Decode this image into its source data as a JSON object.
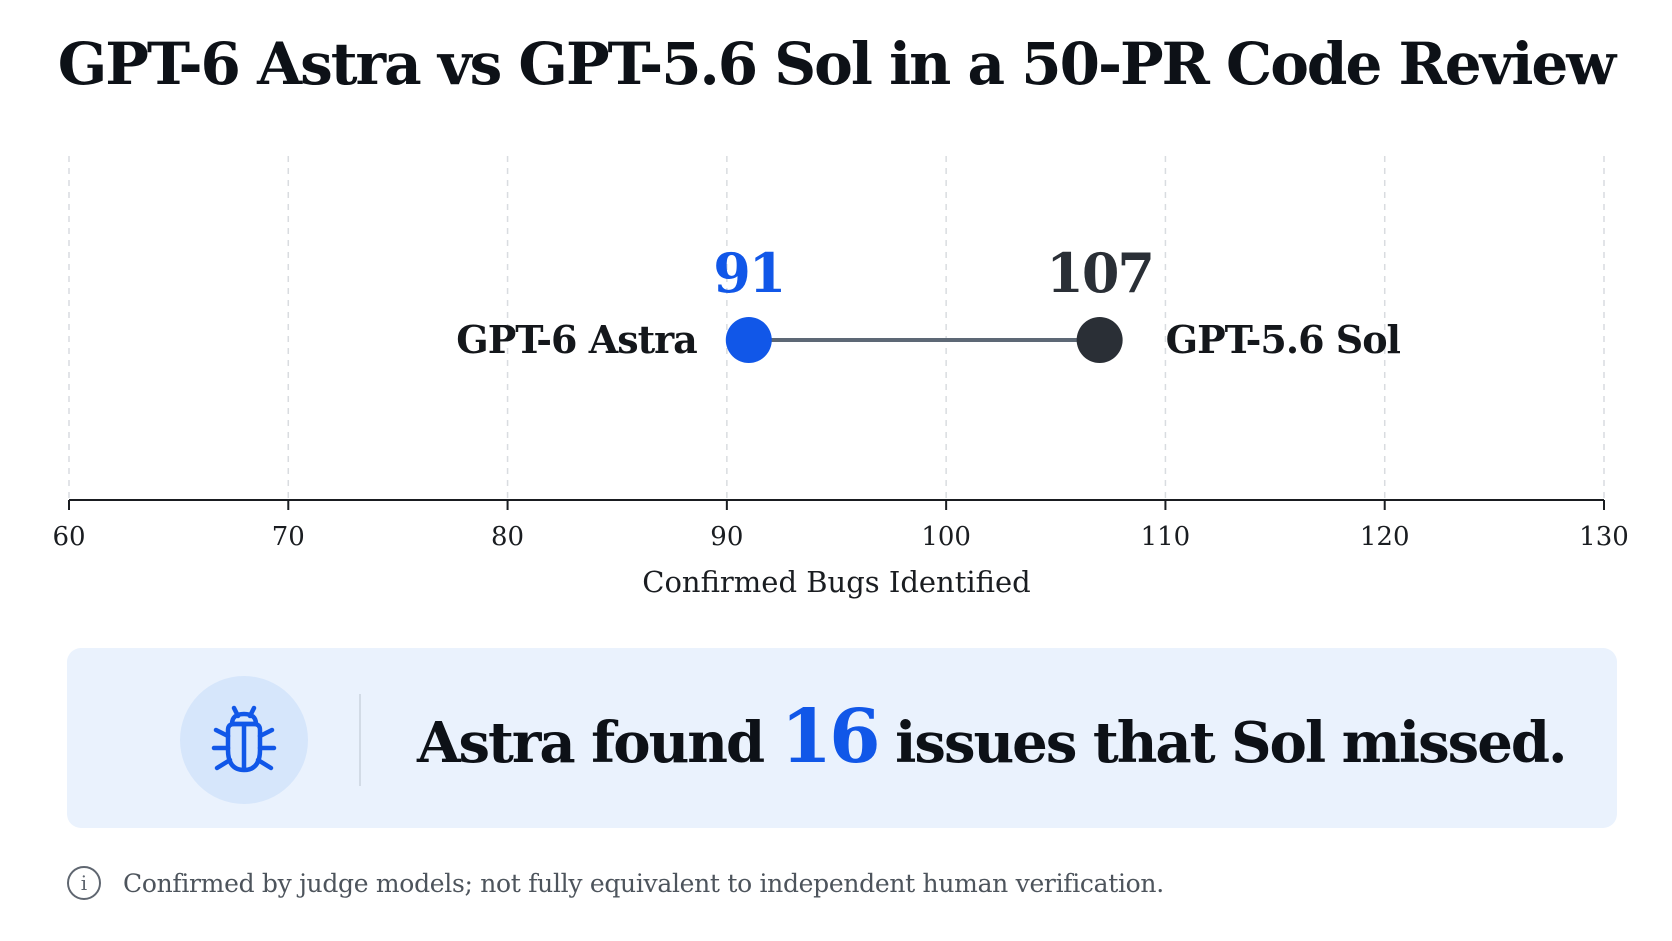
{
  "title": "GPT-6 Astra vs GPT-5.6 Sol in a 50-PR Code Review",
  "chart_data": {
    "type": "scatter",
    "title": "GPT-6 Astra vs GPT-5.6 Sol in a 50-PR Code Review",
    "xlabel": "Confirmed Bugs Identified",
    "xlim": [
      60,
      130
    ],
    "xticks": [
      60,
      70,
      80,
      90,
      100,
      110,
      120,
      130
    ],
    "grid": true,
    "points": [
      {
        "name": "GPT-6 Astra",
        "value": 91,
        "label": "91",
        "color": "#1157e8"
      },
      {
        "name": "GPT-5.6 Sol",
        "value": 107,
        "label": "107",
        "color": "#2a2f36"
      }
    ],
    "connector_color": "#5d6875",
    "axis_color": "#1a1d21",
    "grid_color": "#d9dce0"
  },
  "callout": {
    "prefix": "Astra found",
    "number": "16",
    "suffix": "issues that Sol missed.",
    "icon": "bug-icon",
    "accent_color": "#1157e8",
    "background_color": "#eaf2fd"
  },
  "footnote": {
    "icon": "info-icon",
    "icon_glyph": "i",
    "text": "Confirmed by judge models; not fully equivalent to independent human verification."
  }
}
